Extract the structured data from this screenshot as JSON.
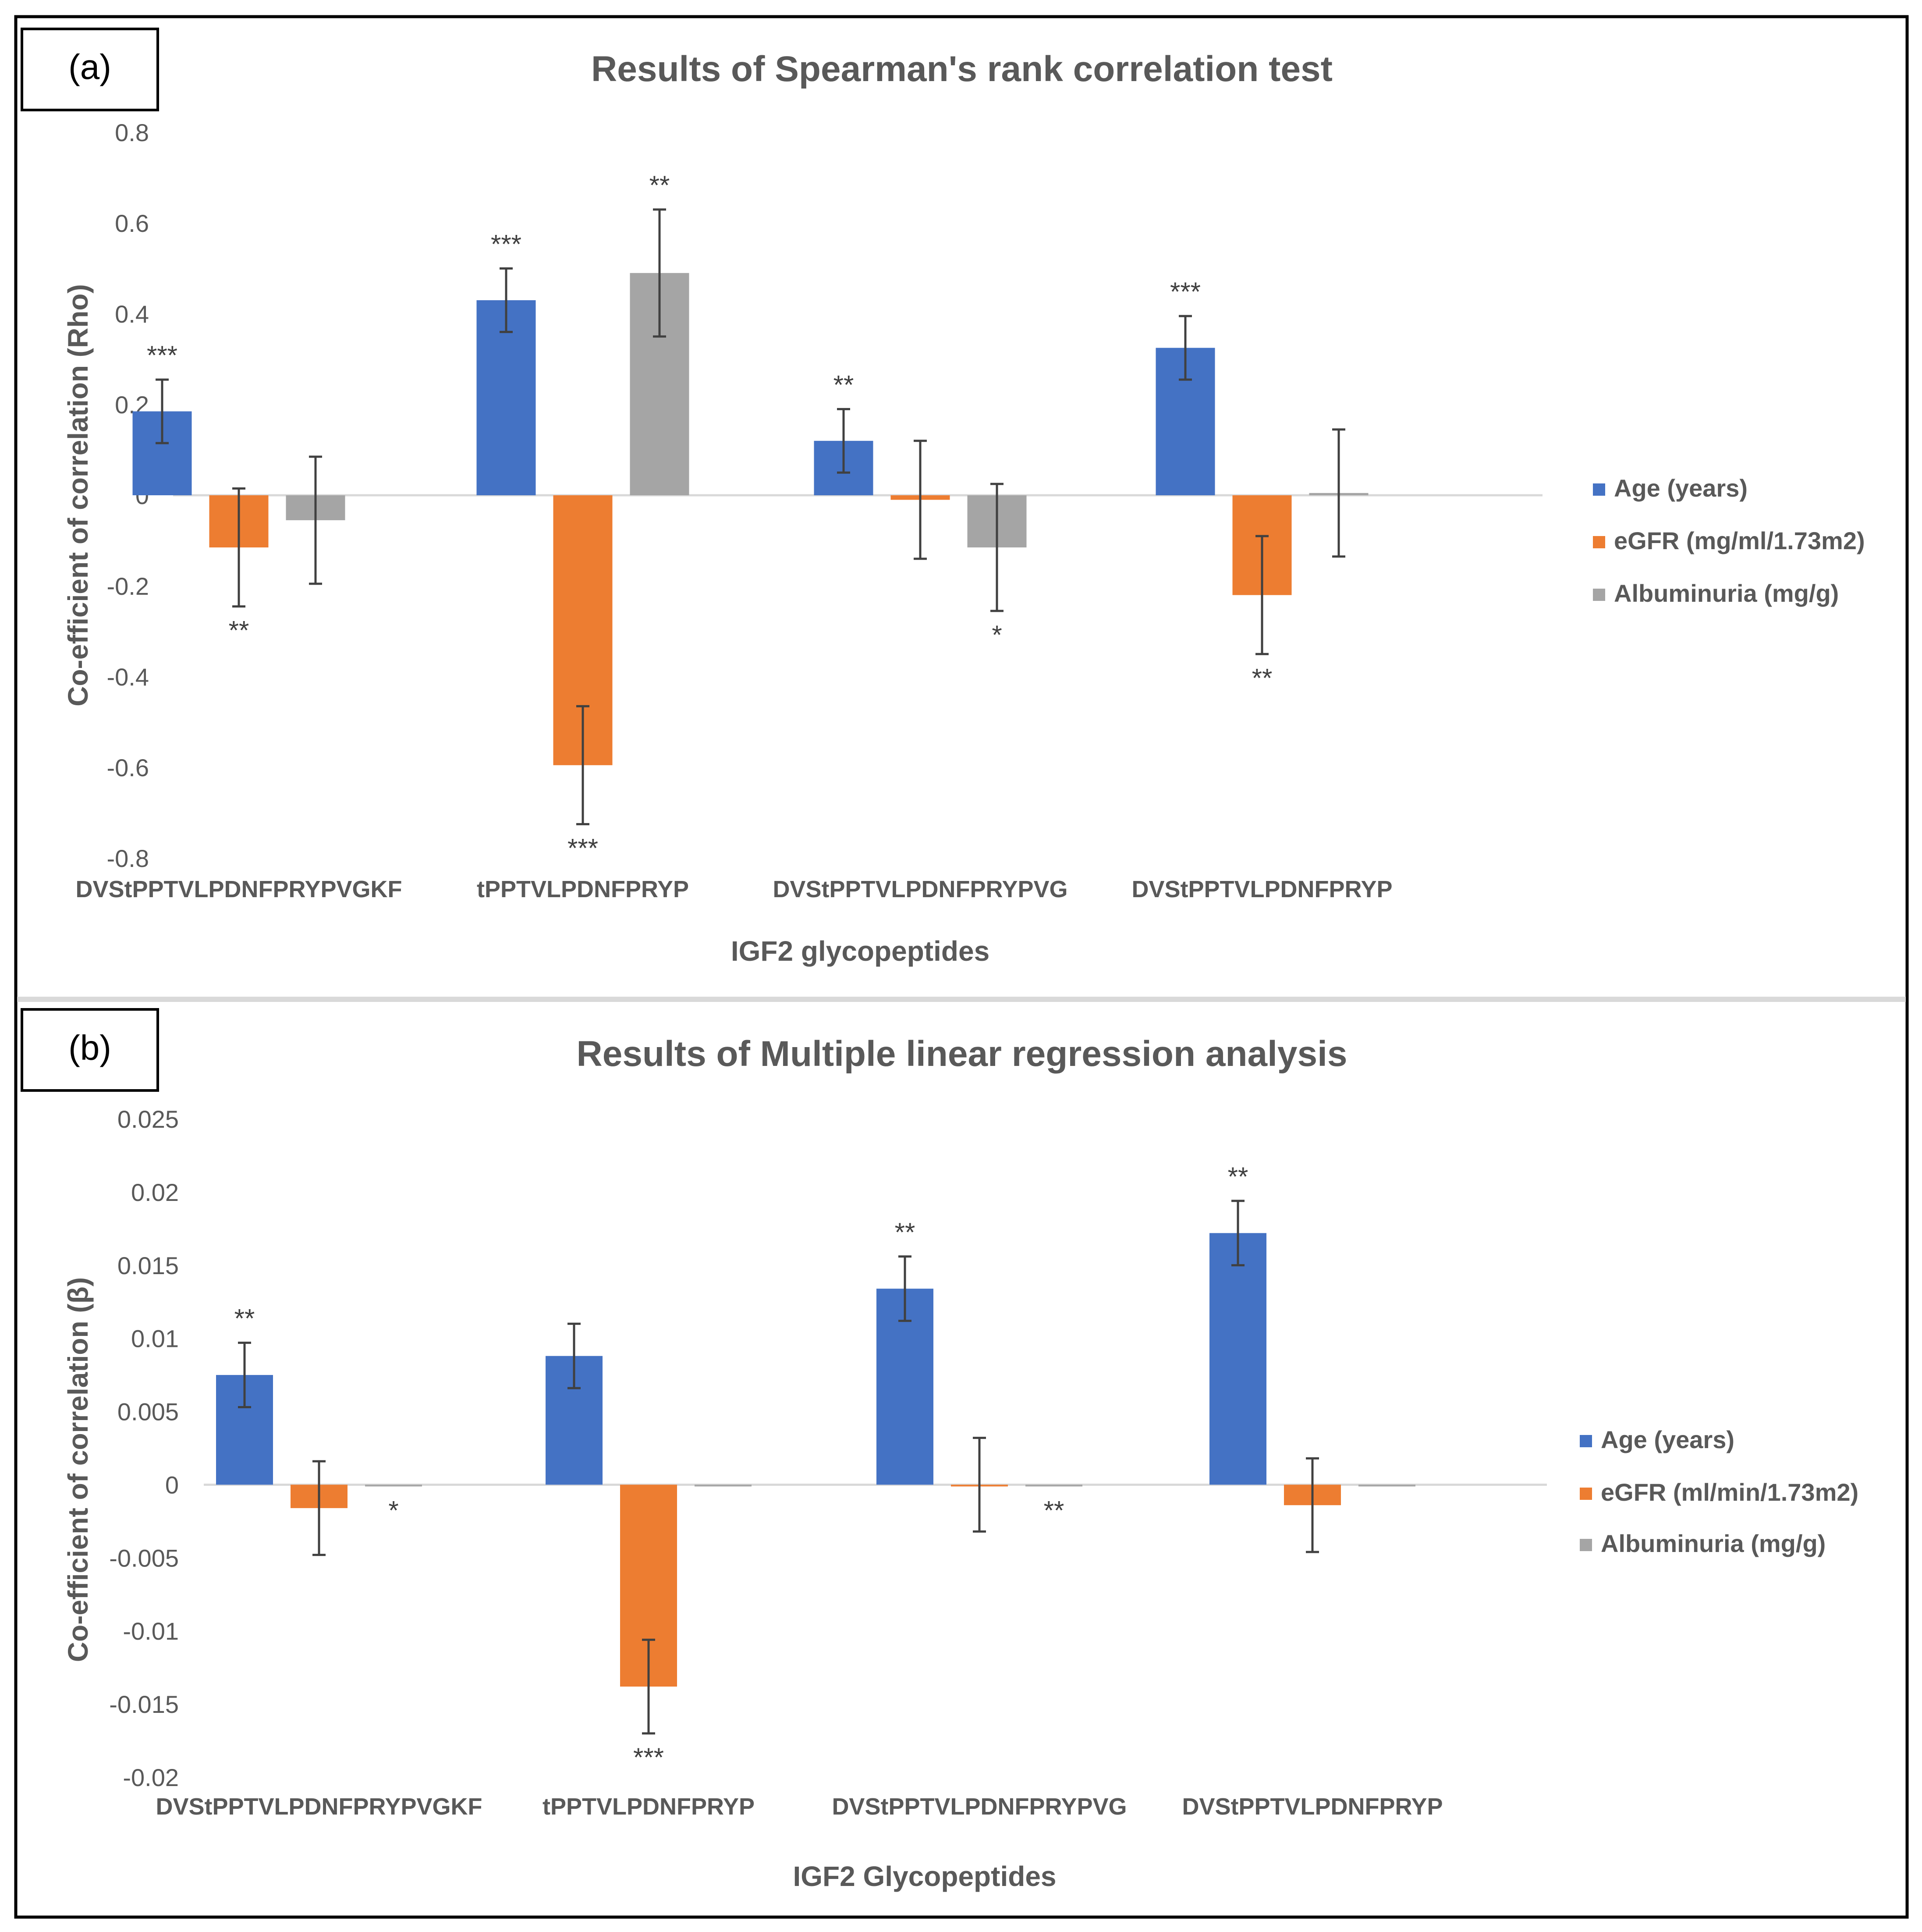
{
  "colors": {
    "age": "#4472C4",
    "egfr": "#ED7D31",
    "albuminuria": "#A5A5A5",
    "text": "#595959",
    "axis": "#D9D9D9",
    "errbar": "#404040"
  },
  "chart_data": [
    {
      "panel_label": "(a)",
      "type": "bar",
      "title": "Results of Spearman's rank correlation test",
      "ylabel": "Co-efficient of correlation (Rho)",
      "xlabel": "IGF2 glycopeptides",
      "ylim": [
        -0.8,
        0.8
      ],
      "yticks": [
        0.8,
        0.6,
        0.4,
        0.2,
        0,
        -0.2,
        -0.4,
        -0.6,
        -0.8
      ],
      "ytick_labels": [
        "0.8",
        "0.6",
        "0.4",
        "0.2",
        "0",
        "-0.2",
        "-0.4",
        "-0.6",
        "-0.8"
      ],
      "categories": [
        "DVStPPTVLPDNFPRYPVGKF",
        "tPPTVLPDNFPRYP",
        "DVStPPTVLPDNFPRYPVG",
        "DVStPPTVLPDNFPRYP"
      ],
      "legend_position": "right",
      "series": [
        {
          "name": "Age (years)",
          "color_key": "age",
          "values": [
            0.185,
            0.43,
            0.12,
            0.325
          ],
          "errors": [
            0.07,
            0.07,
            0.07,
            0.07
          ],
          "significance": [
            "***",
            "***",
            "**",
            "***"
          ]
        },
        {
          "name": "eGFR (mg/ml/1.73m2)",
          "color_key": "egfr",
          "values": [
            -0.115,
            -0.595,
            -0.01,
            -0.22
          ],
          "errors": [
            0.13,
            0.13,
            0.13,
            0.13
          ],
          "significance": [
            "**",
            "***",
            "",
            "**"
          ]
        },
        {
          "name": "Albuminuria (mg/g)",
          "color_key": "albuminuria",
          "values": [
            -0.055,
            0.49,
            -0.115,
            0.005
          ],
          "errors": [
            0.14,
            0.14,
            0.14,
            0.14
          ],
          "significance": [
            "",
            "**",
            "*",
            ""
          ]
        }
      ]
    },
    {
      "panel_label": "(b)",
      "type": "bar",
      "title": "Results of Multiple linear regression analysis",
      "ylabel": "Co-efficient of  correlation (β)",
      "xlabel": "IGF2 Glycopeptides",
      "ylim": [
        -0.02,
        0.025
      ],
      "yticks": [
        0.025,
        0.02,
        0.015,
        0.01,
        0.005,
        0,
        -0.005,
        -0.01,
        -0.015,
        -0.02
      ],
      "ytick_labels": [
        "0.025",
        "0.02",
        "0.015",
        "0.01",
        "0.005",
        "0",
        "-0.005",
        "-0.01",
        "-0.015",
        "-0.02"
      ],
      "categories": [
        "DVStPPTVLPDNFPRYPVGKF",
        "tPPTVLPDNFPRYP",
        "DVStPPTVLPDNFPRYPVG",
        "DVStPPTVLPDNFPRYP"
      ],
      "legend_position": "right",
      "series": [
        {
          "name": "Age (years)",
          "color_key": "age",
          "values": [
            0.0075,
            0.0088,
            0.0134,
            0.0172
          ],
          "errors": [
            0.0022,
            0.0022,
            0.0022,
            0.0022
          ],
          "significance": [
            "**",
            "",
            "**",
            "**"
          ]
        },
        {
          "name": "eGFR (ml/min/1.73m2)",
          "color_key": "egfr",
          "values": [
            -0.0016,
            -0.0138,
            0.0,
            -0.0014
          ],
          "errors": [
            0.0032,
            0.0032,
            0.0032,
            0.0032
          ],
          "significance": [
            "",
            "***",
            "",
            ""
          ]
        },
        {
          "name": "Albuminuria (mg/g)",
          "color_key": "albuminuria",
          "values": [
            -0.0001,
            -0.0001,
            -0.0001,
            -0.0001
          ],
          "errors": [
            0,
            0,
            0,
            0
          ],
          "significance": [
            "*",
            "",
            "**",
            ""
          ]
        }
      ]
    }
  ]
}
